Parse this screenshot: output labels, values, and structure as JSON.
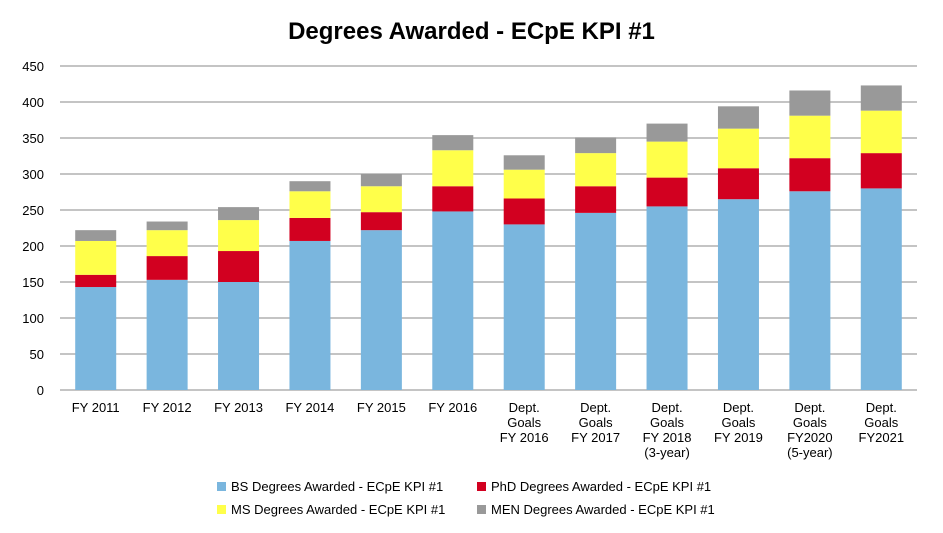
{
  "chart_data": {
    "type": "bar",
    "stacked": true,
    "title": "Degrees Awarded - ECpE KPI #1",
    "xlabel": "",
    "ylabel": "",
    "ylim": [
      0,
      450
    ],
    "yticks": [
      "0",
      "50",
      "100",
      "150",
      "200",
      "250",
      "300",
      "350",
      "400",
      "450"
    ],
    "grid": true,
    "legend_position": "bottom",
    "categories": [
      [
        "FY 2011"
      ],
      [
        "FY 2012"
      ],
      [
        "FY 2013"
      ],
      [
        "FY 2014"
      ],
      [
        "FY 2015"
      ],
      [
        "FY 2016"
      ],
      [
        "Dept.",
        "Goals",
        "FY 2016"
      ],
      [
        "Dept.",
        "Goals",
        "FY 2017"
      ],
      [
        "Dept.",
        "Goals",
        "FY 2018",
        "(3-year)"
      ],
      [
        "Dept.",
        "Goals",
        "FY 2019"
      ],
      [
        "Dept.",
        "Goals",
        "FY2020",
        "(5-year)"
      ],
      [
        "Dept.",
        "Goals",
        "FY2021"
      ]
    ],
    "series": [
      {
        "name": "BS Degrees Awarded - ECpE KPI #1",
        "color": "#7ab6de",
        "values": [
          143,
          153,
          150,
          207,
          222,
          248,
          230,
          246,
          255,
          265,
          276,
          280
        ]
      },
      {
        "name": "PhD Degrees Awarded - ECpE KPI #1",
        "color": "#d20020",
        "values": [
          17,
          33,
          43,
          32,
          25,
          35,
          36,
          37,
          40,
          43,
          46,
          49
        ]
      },
      {
        "name": "MS Degrees Awarded - ECpE KPI #1",
        "color": "#ffff4a",
        "values": [
          47,
          36,
          43,
          37,
          36,
          50,
          40,
          46,
          50,
          55,
          59,
          59
        ]
      },
      {
        "name": "MEN Degrees Awarded - ECpE KPI #1",
        "color": "#999999",
        "values": [
          15,
          12,
          18,
          14,
          17,
          21,
          20,
          22,
          25,
          31,
          35,
          35
        ]
      }
    ]
  }
}
